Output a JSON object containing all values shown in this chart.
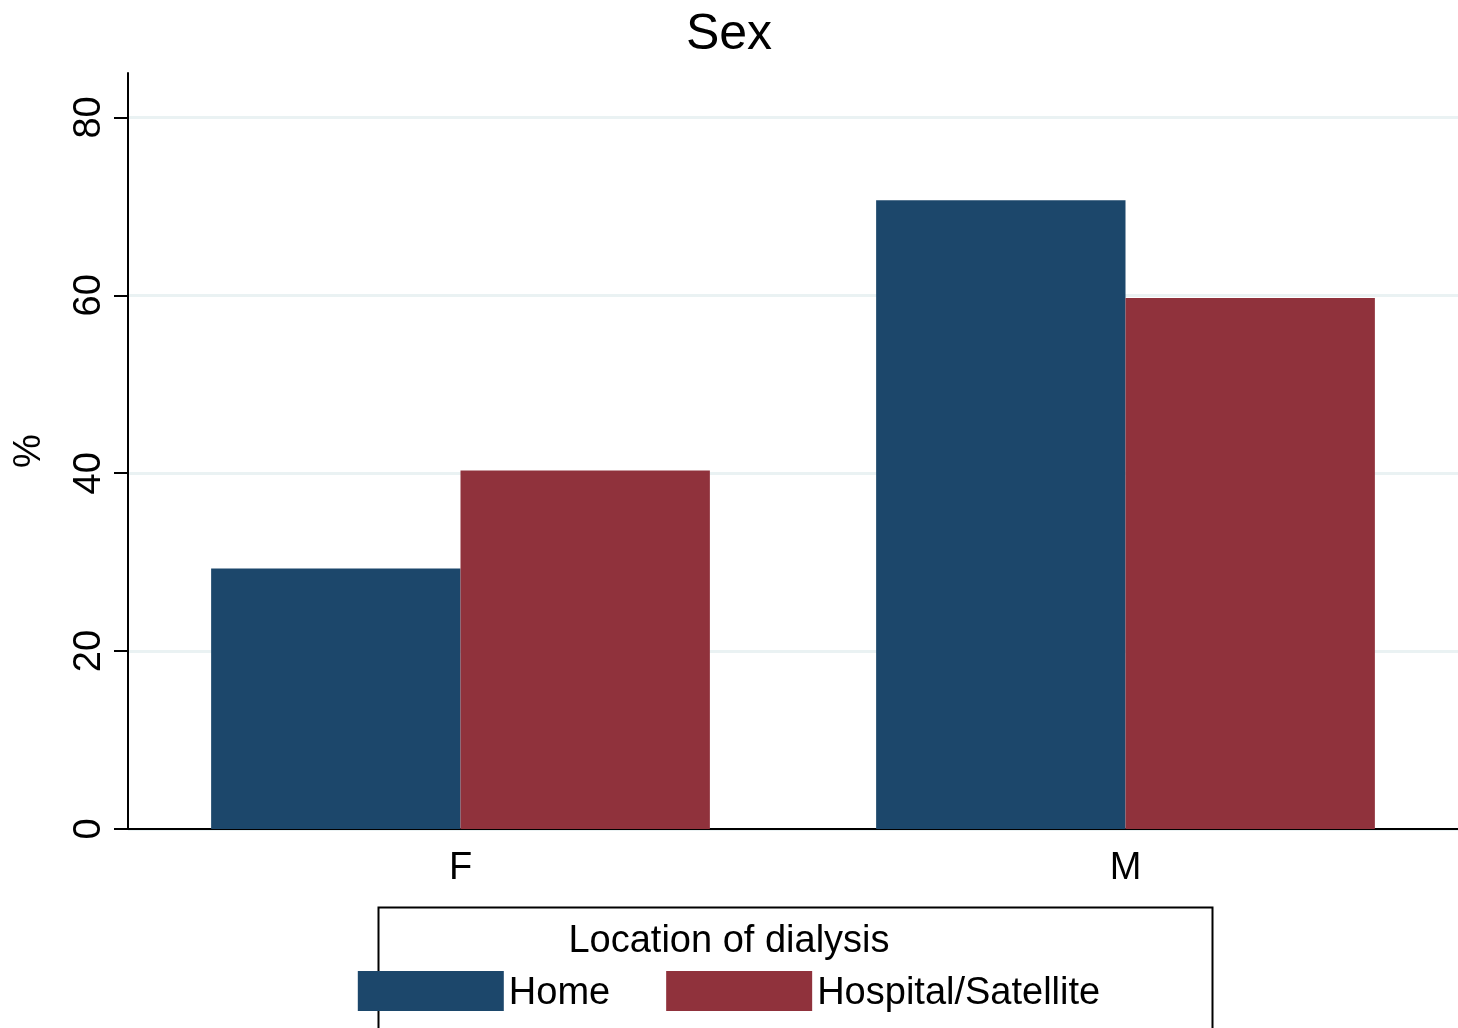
{
  "chart_data": {
    "type": "bar",
    "title": "Sex",
    "ylabel": "%",
    "legend_title": "Location of dialysis",
    "categories": [
      "F",
      "M"
    ],
    "series": [
      {
        "name": "Home",
        "color": "#1c476b",
        "values": [
          29.3,
          70.7
        ]
      },
      {
        "name": "Hospital/Satellite",
        "color": "#90323c",
        "values": [
          40.3,
          59.7
        ]
      }
    ],
    "ylim": [
      0,
      85
    ],
    "yticks": [
      0,
      20,
      40,
      60,
      80
    ],
    "grid": "y",
    "legend": "bottom"
  }
}
